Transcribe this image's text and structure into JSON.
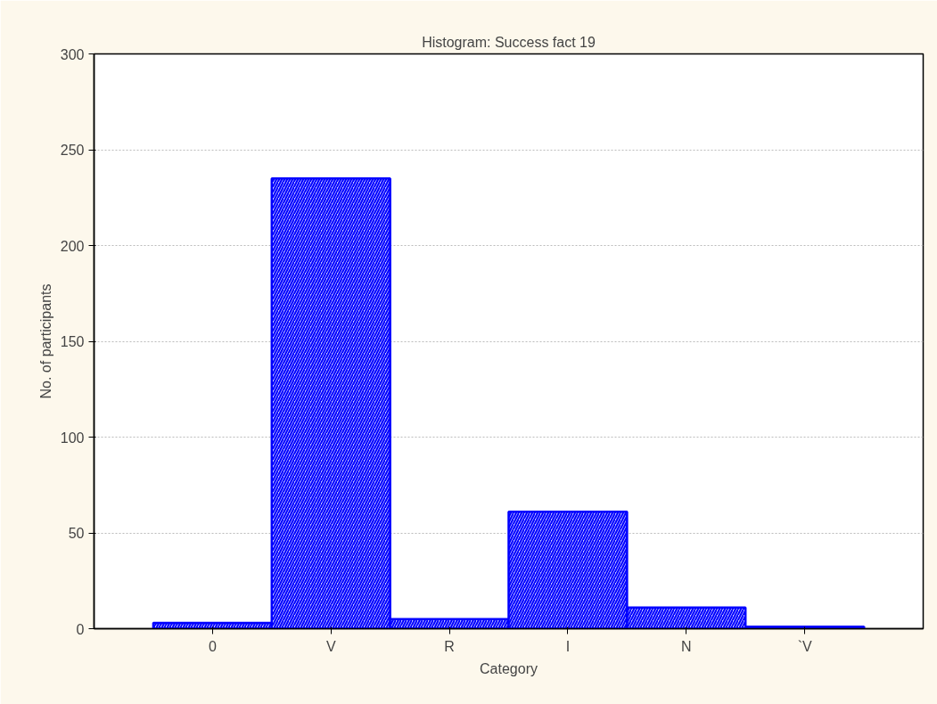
{
  "chart_data": {
    "type": "bar",
    "title": "Histogram: Success fact 19",
    "xlabel": "Category",
    "ylabel": "No. of participants",
    "categories": [
      "0",
      "V",
      "R",
      "I",
      "N",
      "`V"
    ],
    "values": [
      3,
      235,
      5,
      61,
      11,
      1
    ],
    "color": "#0000ff",
    "ylim": [
      0,
      300
    ],
    "yticks": [
      0,
      50,
      100,
      150,
      200,
      250,
      300
    ],
    "grid": "y"
  }
}
